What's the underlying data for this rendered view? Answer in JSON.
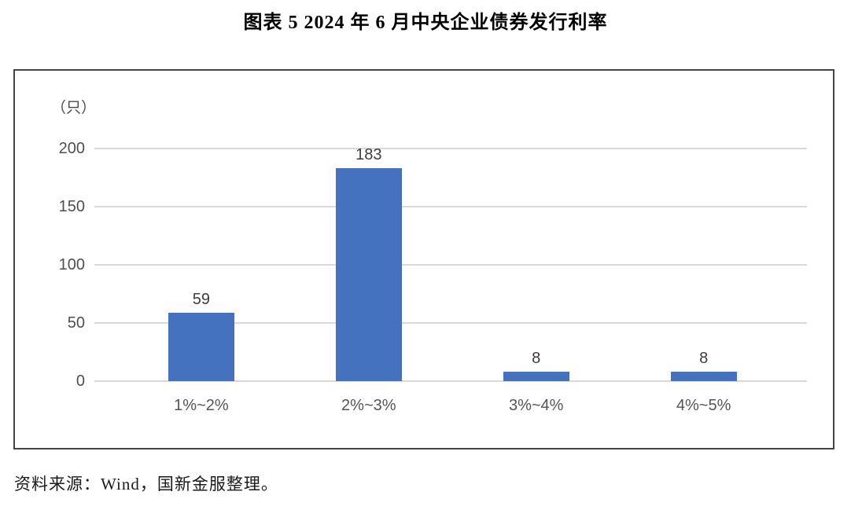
{
  "page": {
    "title": "图表 5 2024 年 6 月中央企业债券发行利率",
    "source_note": "资料来源：Wind，国新金服整理。"
  },
  "chart_data": {
    "type": "bar",
    "title": "图表 5 2024 年 6 月中央企业债券发行利率",
    "unit_label": "（只）",
    "categories": [
      "1%~2%",
      "2%~3%",
      "3%~4%",
      "4%~5%"
    ],
    "values": [
      59,
      183,
      8,
      8
    ],
    "xlabel": "",
    "ylabel": "（只）",
    "ylim": [
      0,
      200
    ],
    "yticks": [
      0,
      50,
      100,
      150,
      200
    ],
    "grid": true,
    "legend": "none",
    "data_labels": true,
    "bar_color": "#4472be",
    "gridline_color": "#d9d9d9",
    "chart_border_color": "#454545"
  }
}
